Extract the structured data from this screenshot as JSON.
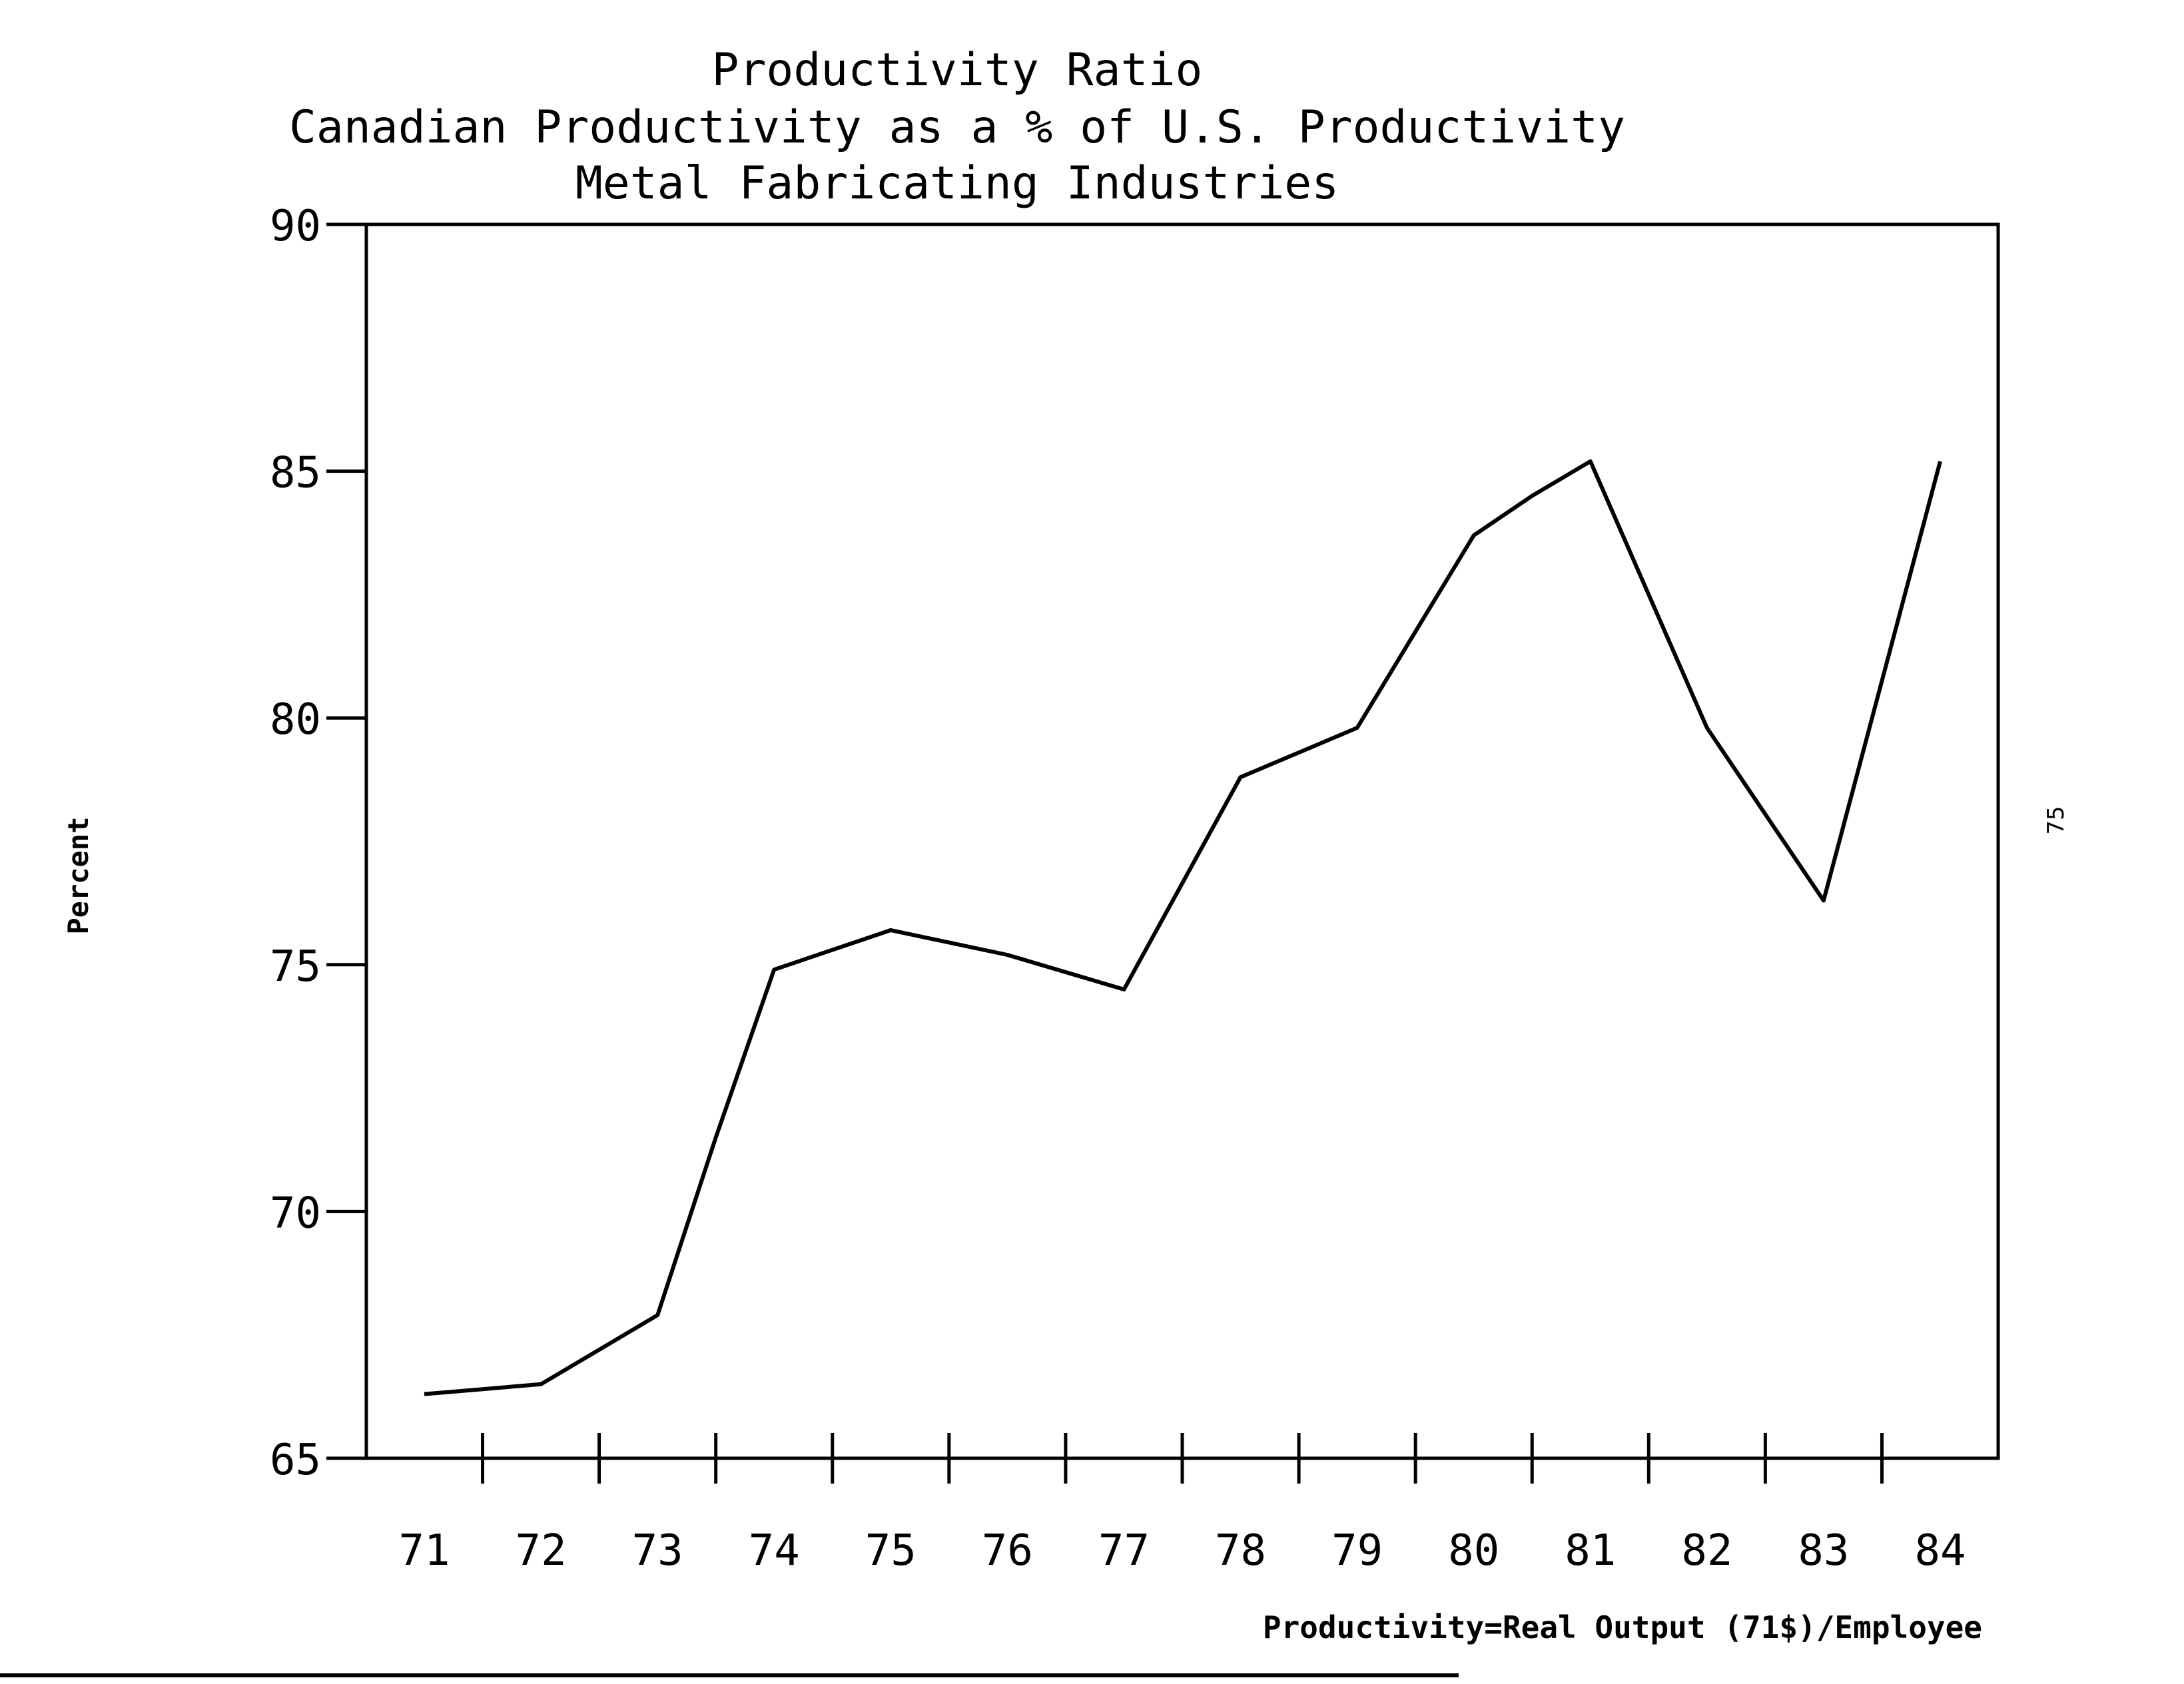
{
  "chart_data": {
    "type": "line",
    "title": "Productivity Ratio",
    "subtitle_lines": [
      "Canadian Productivity as a % of U.S. Productivity",
      "Metal Fabricating Industries"
    ],
    "ylabel": "Percent",
    "xlabel": "",
    "note": "Productivity=Real Output (71$)/Employee",
    "ylim": [
      65,
      90
    ],
    "yticks": [
      "65",
      "70",
      "75",
      "80",
      "85",
      "90"
    ],
    "categories": [
      "71",
      "72",
      "73",
      "74",
      "75",
      "76",
      "77",
      "78",
      "79",
      "80",
      "81",
      "82",
      "83",
      "84"
    ],
    "x": [
      71.0,
      72.0,
      73.0,
      73.5,
      74.0,
      75.0,
      76.0,
      77.0,
      78.0,
      78.5,
      79.0,
      80.0,
      80.5,
      81.0,
      82.0,
      83.0,
      84.0
    ],
    "values": [
      66.3,
      66.5,
      67.9,
      71.5,
      74.9,
      75.7,
      75.2,
      74.5,
      78.8,
      79.3,
      79.8,
      83.7,
      84.5,
      85.2,
      79.8,
      76.3,
      85.2
    ],
    "grid": false,
    "legend": "none",
    "line_color": "#000000"
  },
  "page_number": "75"
}
